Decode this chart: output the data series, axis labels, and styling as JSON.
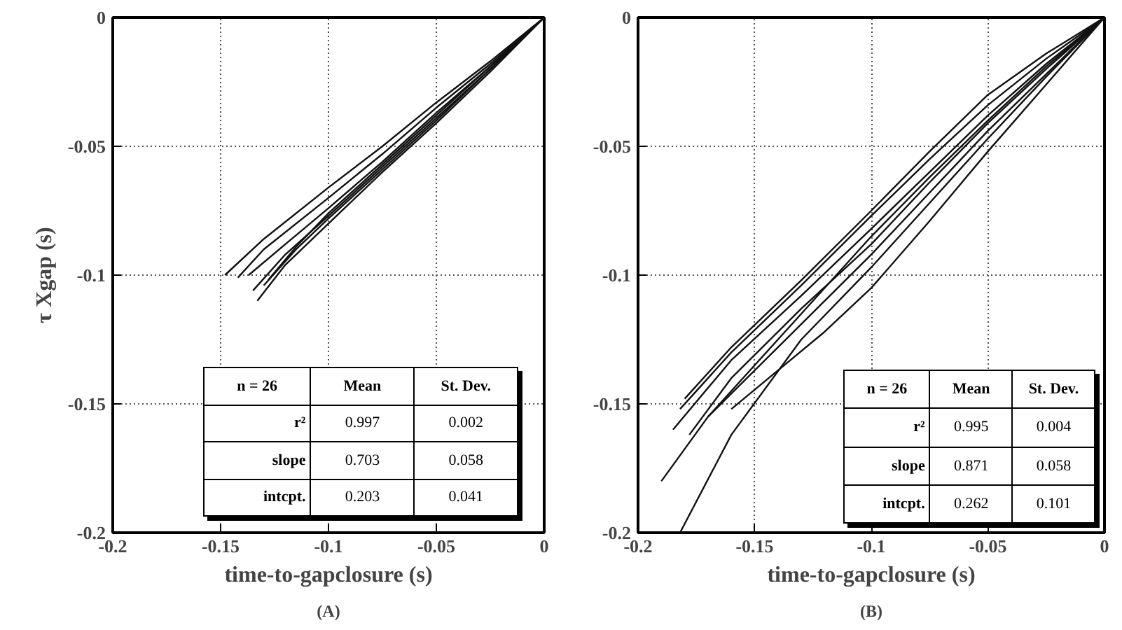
{
  "chart_data": [
    {
      "type": "line",
      "xlabel": "time-to-gapclosure (s)",
      "ylabel": "τ Xgap (s)",
      "xlim": [
        -0.2,
        0
      ],
      "ylim": [
        -0.2,
        0
      ],
      "xticks": [
        -0.2,
        -0.15,
        -0.1,
        -0.05,
        0
      ],
      "yticks": [
        -0.2,
        -0.15,
        -0.1,
        -0.05,
        0
      ],
      "grid": true,
      "series": [
        {
          "color": "#111111",
          "x": [
            -0.148,
            -0.13,
            -0.1,
            -0.075,
            -0.05,
            -0.025,
            0
          ],
          "values": [
            -0.1,
            -0.086,
            -0.066,
            -0.05,
            -0.033,
            -0.017,
            0
          ]
        },
        {
          "color": "#111111",
          "x": [
            -0.142,
            -0.13,
            -0.1,
            -0.075,
            -0.05,
            -0.025,
            0
          ],
          "values": [
            -0.101,
            -0.09,
            -0.07,
            -0.053,
            -0.035,
            -0.018,
            0
          ]
        },
        {
          "color": "#111111",
          "x": [
            -0.137,
            -0.12,
            -0.1,
            -0.075,
            -0.05,
            -0.025,
            0
          ],
          "values": [
            -0.1,
            -0.088,
            -0.074,
            -0.056,
            -0.037,
            -0.019,
            0
          ]
        },
        {
          "color": "#111111",
          "x": [
            -0.135,
            -0.12,
            -0.1,
            -0.075,
            -0.05,
            -0.025,
            0
          ],
          "values": [
            -0.106,
            -0.092,
            -0.077,
            -0.058,
            -0.039,
            -0.02,
            0
          ]
        },
        {
          "color": "#111111",
          "x": [
            -0.133,
            -0.12,
            -0.1,
            -0.075,
            -0.05,
            -0.025,
            0
          ],
          "values": [
            -0.11,
            -0.096,
            -0.08,
            -0.06,
            -0.041,
            -0.021,
            0
          ]
        },
        {
          "color": "#111111",
          "x": [
            -0.13,
            -0.115,
            -0.1,
            -0.075,
            -0.05,
            -0.025,
            0
          ],
          "values": [
            -0.104,
            -0.09,
            -0.078,
            -0.059,
            -0.04,
            -0.02,
            0
          ]
        },
        {
          "color": "#111111",
          "x": [
            -0.128,
            -0.115,
            -0.1,
            -0.075,
            -0.05,
            -0.025,
            0
          ],
          "values": [
            -0.102,
            -0.089,
            -0.076,
            -0.057,
            -0.038,
            -0.019,
            0
          ]
        }
      ],
      "annotations": [
        "n = 26",
        "Mean",
        "St. Dev.",
        "r²",
        "0.997",
        "0.002",
        "slope",
        "0.703",
        "0.058",
        "intcpt.",
        "0.203",
        "0.041",
        "(A)"
      ]
    },
    {
      "type": "line",
      "xlabel": "time-to-gapclosure (s)",
      "xlim": [
        -0.2,
        0
      ],
      "ylim": [
        -0.2,
        0
      ],
      "xticks": [
        -0.2,
        -0.15,
        -0.1,
        -0.05,
        0
      ],
      "yticks": [
        -0.2,
        -0.15,
        -0.1,
        -0.05,
        0
      ],
      "grid": true,
      "series": [
        {
          "color": "#111111",
          "x": [
            -0.185,
            -0.16,
            -0.13,
            -0.1,
            -0.075,
            -0.05,
            -0.025,
            0
          ],
          "values": [
            -0.16,
            -0.133,
            -0.108,
            -0.082,
            -0.06,
            -0.038,
            -0.018,
            0
          ]
        },
        {
          "color": "#111111",
          "x": [
            -0.182,
            -0.16,
            -0.13,
            -0.1,
            -0.075,
            -0.05,
            -0.025,
            0
          ],
          "values": [
            -0.152,
            -0.13,
            -0.104,
            -0.077,
            -0.055,
            -0.034,
            -0.016,
            0
          ]
        },
        {
          "color": "#111111",
          "x": [
            -0.18,
            -0.16,
            -0.13,
            -0.1,
            -0.075,
            -0.05,
            -0.025,
            0
          ],
          "values": [
            -0.148,
            -0.128,
            -0.102,
            -0.075,
            -0.052,
            -0.03,
            -0.014,
            0
          ]
        },
        {
          "color": "#111111",
          "x": [
            -0.178,
            -0.16,
            -0.13,
            -0.1,
            -0.075,
            -0.05,
            -0.025,
            0
          ],
          "values": [
            -0.162,
            -0.14,
            -0.113,
            -0.088,
            -0.064,
            -0.041,
            -0.02,
            0
          ]
        },
        {
          "color": "#111111",
          "x": [
            -0.19,
            -0.17,
            -0.14,
            -0.1,
            -0.075,
            -0.05,
            -0.025,
            0
          ],
          "values": [
            -0.18,
            -0.155,
            -0.128,
            -0.092,
            -0.068,
            -0.044,
            -0.022,
            0
          ]
        },
        {
          "color": "#111111",
          "x": [
            -0.182,
            -0.16,
            -0.13,
            -0.1,
            -0.075,
            -0.05,
            -0.025,
            0
          ],
          "values": [
            -0.2,
            -0.162,
            -0.125,
            -0.097,
            -0.072,
            -0.047,
            -0.023,
            0
          ]
        },
        {
          "color": "#111111",
          "x": [
            -0.16,
            -0.14,
            -0.12,
            -0.1,
            -0.075,
            -0.05,
            -0.025,
            0
          ],
          "values": [
            -0.152,
            -0.137,
            -0.122,
            -0.105,
            -0.079,
            -0.052,
            -0.026,
            0
          ]
        },
        {
          "color": "#111111",
          "x": [
            -0.17,
            -0.15,
            -0.13,
            -0.1,
            -0.075,
            -0.05,
            -0.025,
            0
          ],
          "values": [
            -0.155,
            -0.135,
            -0.115,
            -0.085,
            -0.062,
            -0.04,
            -0.019,
            0
          ]
        }
      ],
      "annotations": [
        "n = 26",
        "Mean",
        "St. Dev.",
        "r²",
        "0.995",
        "0.004",
        "slope",
        "0.871",
        "0.058",
        "intcpt.",
        "0.262",
        "0.101",
        "(B)"
      ]
    }
  ]
}
